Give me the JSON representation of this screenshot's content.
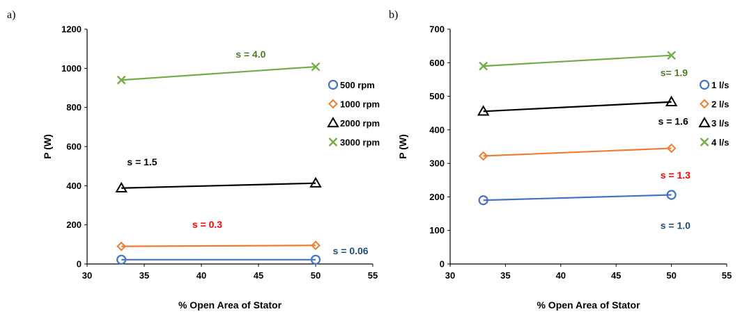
{
  "chart_data": [
    {
      "panel_label": "a)",
      "type": "line",
      "xlabel": "% Open Area of Stator",
      "ylabel": "P (W)",
      "xlim": [
        30,
        55
      ],
      "ylim": [
        0,
        1200
      ],
      "xticks": [
        30,
        35,
        40,
        45,
        50,
        55
      ],
      "yticks": [
        0,
        200,
        400,
        600,
        800,
        1000,
        1200
      ],
      "grid": false,
      "legend_position": "right",
      "series": [
        {
          "name": "500 rpm",
          "marker": "circle",
          "color": "#4472c4",
          "x": [
            33,
            50
          ],
          "y": [
            22,
            22
          ]
        },
        {
          "name": "1000 rpm",
          "marker": "diamond",
          "color": "#ed7d31",
          "x": [
            33,
            50
          ],
          "y": [
            90,
            95
          ]
        },
        {
          "name": "2000 rpm",
          "marker": "triangle",
          "color": "#000000",
          "x": [
            33,
            50
          ],
          "y": [
            388,
            413
          ]
        },
        {
          "name": "3000 rpm",
          "marker": "x",
          "color": "#70ad47",
          "x": [
            33,
            50
          ],
          "y": [
            940,
            1008
          ]
        }
      ],
      "annotations": [
        {
          "text": "s = 4.0",
          "color": "#4e7a26",
          "x": 43,
          "y": 1055
        },
        {
          "text": "s = 1.5",
          "color": "#000000",
          "x": 33.5,
          "y": 505
        },
        {
          "text": "s = 0.3",
          "color": "#ff0000",
          "x": 39.2,
          "y": 185
        },
        {
          "text": "s = 0.06",
          "color": "#1f4e79",
          "x": 51.5,
          "y": 50
        }
      ]
    },
    {
      "panel_label": "b)",
      "type": "line",
      "xlabel": "% Open Area of Stator",
      "ylabel": "P (W)",
      "xlim": [
        30,
        55
      ],
      "ylim": [
        0,
        700
      ],
      "xticks": [
        30,
        35,
        40,
        45,
        50,
        55
      ],
      "yticks": [
        0,
        100,
        200,
        300,
        400,
        500,
        600,
        700
      ],
      "grid": false,
      "legend_position": "right",
      "series": [
        {
          "name": "1 l/s",
          "marker": "circle",
          "color": "#4472c4",
          "x": [
            33,
            50
          ],
          "y": [
            190,
            206
          ]
        },
        {
          "name": "2 l/s",
          "marker": "diamond",
          "color": "#ed7d31",
          "x": [
            33,
            50
          ],
          "y": [
            322,
            345
          ]
        },
        {
          "name": "3 l/s",
          "marker": "triangle",
          "color": "#000000",
          "x": [
            33,
            50
          ],
          "y": [
            455,
            483
          ]
        },
        {
          "name": "4 l/s",
          "marker": "x",
          "color": "#70ad47",
          "x": [
            33,
            50
          ],
          "y": [
            590,
            622
          ]
        }
      ],
      "annotations": [
        {
          "text": "s= 1.9",
          "color": "#4e7a26",
          "x": 49,
          "y": 560
        },
        {
          "text": "s = 1.6",
          "color": "#000000",
          "x": 48.8,
          "y": 415
        },
        {
          "text": "s = 1.3",
          "color": "#ff0000",
          "x": 49,
          "y": 255
        },
        {
          "text": "s = 1.0",
          "color": "#1f4e79",
          "x": 49,
          "y": 105
        }
      ]
    }
  ]
}
